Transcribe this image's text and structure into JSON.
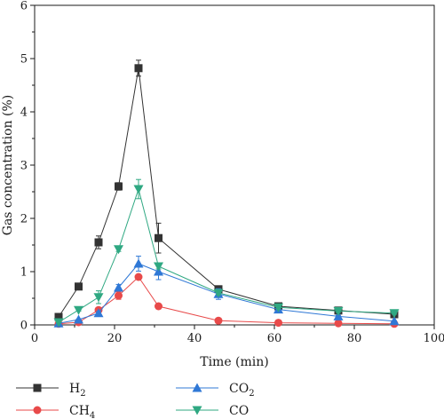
{
  "chart_data": {
    "type": "line",
    "xlabel": "Time (min)",
    "ylabel": "Gas concentration (%)",
    "xlim": [
      0,
      100
    ],
    "ylim": [
      0,
      6
    ],
    "xticks": [
      0,
      20,
      40,
      60,
      80,
      100
    ],
    "yticks": [
      0,
      1,
      2,
      3,
      4,
      5,
      6
    ],
    "grid": false,
    "legend_position": "bottom",
    "series": [
      {
        "name": "H2",
        "label_main": "H",
        "label_sub": "2",
        "color": "#333333",
        "marker": "square",
        "x": [
          6,
          11,
          16,
          21,
          26,
          31,
          46,
          61,
          76,
          90
        ],
        "y": [
          0.15,
          0.72,
          1.55,
          2.6,
          4.82,
          1.63,
          0.67,
          0.35,
          0.27,
          0.2
        ],
        "err": [
          0.02,
          0.03,
          0.12,
          0.07,
          0.15,
          0.28,
          0.03,
          0.03,
          0.02,
          0.02
        ]
      },
      {
        "name": "CH4",
        "label_main": "CH",
        "label_sub": "4",
        "color": "#e84a4a",
        "marker": "circle",
        "x": [
          6,
          11,
          16,
          21,
          26,
          31,
          46,
          61,
          76,
          90
        ],
        "y": [
          0.02,
          0.05,
          0.28,
          0.55,
          0.9,
          0.35,
          0.08,
          0.04,
          0.03,
          0.02
        ],
        "err": [
          0.01,
          0.01,
          0.04,
          0.07,
          0.03,
          0.02,
          0.01,
          0.01,
          0.01,
          0.01
        ]
      },
      {
        "name": "CO2",
        "label_main": "CO",
        "label_sub": "2",
        "color": "#2f78d6",
        "marker": "triangle-up",
        "x": [
          6,
          11,
          16,
          21,
          26,
          31,
          46,
          61,
          76,
          90
        ],
        "y": [
          0.03,
          0.1,
          0.22,
          0.7,
          1.15,
          1.0,
          0.58,
          0.29,
          0.16,
          0.07
        ],
        "err": [
          0.01,
          0.01,
          0.03,
          0.06,
          0.14,
          0.15,
          0.1,
          0.03,
          0.02,
          0.01
        ]
      },
      {
        "name": "CO",
        "label_main": "CO",
        "label_sub": "",
        "color": "#2fa882",
        "marker": "triangle-down",
        "x": [
          6,
          11,
          16,
          21,
          26,
          31,
          46,
          61,
          76,
          90
        ],
        "y": [
          0.05,
          0.28,
          0.52,
          1.42,
          2.55,
          1.1,
          0.6,
          0.33,
          0.26,
          0.22
        ],
        "err": [
          0.01,
          0.02,
          0.12,
          0.04,
          0.18,
          0.05,
          0.04,
          0.03,
          0.03,
          0.02
        ]
      }
    ]
  }
}
